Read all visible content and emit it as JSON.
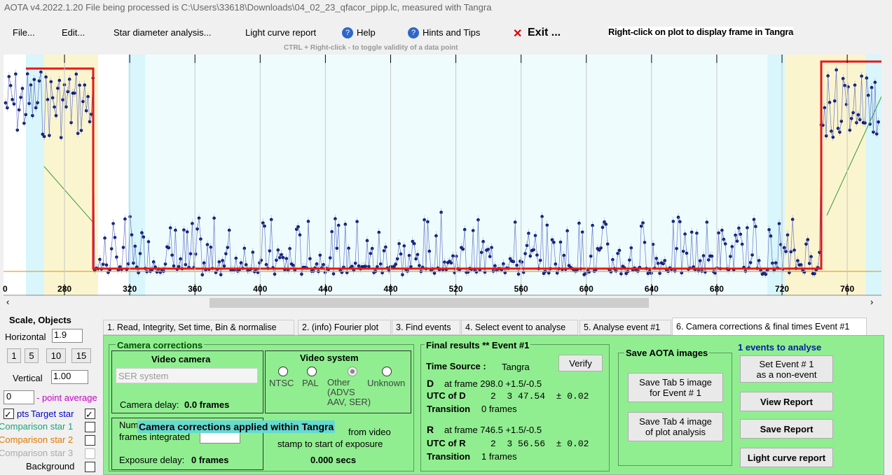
{
  "title_bar": "AOTA v4.2022.1.20    File being processed is C:\\Users\\33618\\Downloads\\04_02_23_qfacor_pipp.lc, measured with Tangra",
  "menu": {
    "file": "File...",
    "edit": "Edit...",
    "star": "Star diameter analysis...",
    "lc": "Light curve report",
    "help": "Help",
    "hints": "Hints and Tips",
    "exit": "Exit ..."
  },
  "plot_hint": "Right-click on plot to display frame in Tangra",
  "plot_subhint": "CTRL + Right-click  -  to toggle validity of a data point",
  "plot": {
    "x_origin_label": "0",
    "xlim": [
      242.6,
      781
    ],
    "xticks": [
      280,
      320,
      360,
      400,
      440,
      480,
      520,
      560,
      600,
      640,
      680,
      720,
      760
    ]
  },
  "scale": {
    "title": "Scale,  Objects",
    "horizontal": "Horizontal",
    "h_value": "1.9",
    "buttons": [
      "1",
      "5",
      "10",
      "15"
    ],
    "vertical": "Vertical",
    "v_value": "1.00",
    "avg_value": "0",
    "avg_label": "- point average",
    "pts": "pts",
    "target": "Target star",
    "comp1": "Comparison star 1",
    "comp2": "Comparison star 2",
    "comp3": "Comparison star 3",
    "background": "Background"
  },
  "tabs": [
    "1.  Read, Integrity, Set time, Bin & normalise",
    "2. (info)  Fourier plot",
    "3. Find events",
    "4. Select event to analyse",
    "5. Analyse event #1",
    "6. Camera corrections & final times Event #1"
  ],
  "camera": {
    "title": "Camera corrections",
    "video_camera": "Video camera",
    "camera_select": "SER system",
    "camera_delay": "Camera delay:",
    "camera_delay_value": "0.0 frames",
    "num": "Num",
    "frames_integrated": "frames integrated",
    "tooltip": "Camera corrections applied within Tangra",
    "exposure_delay": "Exposure delay:",
    "exposure_delay_value": "0 frames",
    "video_system": "Video system",
    "radios": [
      "NTSC",
      "PAL",
      "Other\n(ADVS\nAAV, SER)",
      "Unknown"
    ],
    "from_video": "from video",
    "stamp": "stamp to start of exposure",
    "secs": "0.000 secs"
  },
  "final": {
    "title": "Final results  **  Event #1",
    "time_source": "Time Source :",
    "time_source_value": "Tangra",
    "verify": "Verify",
    "d_label": "D",
    "d_frame": "at frame 298.0  +1.5/-0.5",
    "utc_d": "UTC of D",
    "utc_d_value": "2  3 47.54  ± 0.02",
    "transition": "Transition",
    "d_transition": "0 frames",
    "r_label": "R",
    "r_frame": "at frame 746.5  +1.5/-0.5",
    "utc_r": "UTC of R",
    "utc_r_value": "2  3 56.56  ± 0.02",
    "r_transition": "1 frames"
  },
  "save": {
    "title": "Save AOTA images",
    "tab5": "Save Tab 5 image\nfor Event # 1",
    "tab4": "Save Tab 4 image\nof plot analysis"
  },
  "right": {
    "events": "1 events to analyse",
    "set_event": "Set Event # 1\nas a non-event",
    "view": "View Report",
    "save": "Save Report",
    "lc": "Light curve report"
  }
}
